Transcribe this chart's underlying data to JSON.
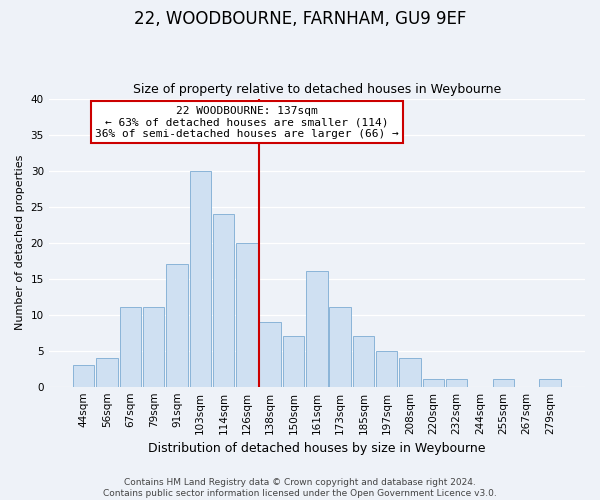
{
  "title": "22, WOODBOURNE, FARNHAM, GU9 9EF",
  "subtitle": "Size of property relative to detached houses in Weybourne",
  "xlabel": "Distribution of detached houses by size in Weybourne",
  "ylabel": "Number of detached properties",
  "bar_labels": [
    "44sqm",
    "56sqm",
    "67sqm",
    "79sqm",
    "91sqm",
    "103sqm",
    "114sqm",
    "126sqm",
    "138sqm",
    "150sqm",
    "161sqm",
    "173sqm",
    "185sqm",
    "197sqm",
    "208sqm",
    "220sqm",
    "232sqm",
    "244sqm",
    "255sqm",
    "267sqm",
    "279sqm"
  ],
  "bar_values": [
    3,
    4,
    11,
    11,
    17,
    30,
    24,
    20,
    9,
    7,
    16,
    11,
    7,
    5,
    4,
    1,
    1,
    0,
    1,
    0,
    1
  ],
  "bar_color": "#cfe0f2",
  "bar_edge_color": "#8ab4d8",
  "vline_color": "#cc0000",
  "vline_x": 7.5,
  "ylim": [
    0,
    40
  ],
  "yticks": [
    0,
    5,
    10,
    15,
    20,
    25,
    30,
    35,
    40
  ],
  "annotation_title": "22 WOODBOURNE: 137sqm",
  "annotation_line1": "← 63% of detached houses are smaller (114)",
  "annotation_line2": "36% of semi-detached houses are larger (66) →",
  "annotation_box_color": "#ffffff",
  "annotation_box_edge": "#cc0000",
  "footer_line1": "Contains HM Land Registry data © Crown copyright and database right 2024.",
  "footer_line2": "Contains public sector information licensed under the Open Government Licence v3.0.",
  "bg_color": "#eef2f8",
  "plot_bg_color": "#eef2f8",
  "grid_color": "#ffffff",
  "title_fontsize": 12,
  "subtitle_fontsize": 9,
  "ylabel_fontsize": 8,
  "xlabel_fontsize": 9,
  "tick_fontsize": 7.5,
  "footer_fontsize": 6.5
}
